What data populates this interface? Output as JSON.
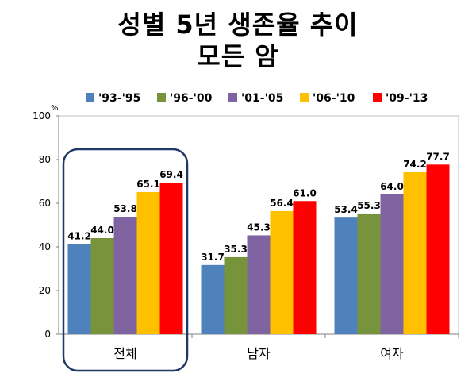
{
  "title_line1": "성별 5년 생존율 추이",
  "title_line2": "모든 암",
  "chart_data": {
    "type": "bar",
    "ylabel": "%",
    "ylim": [
      0,
      100
    ],
    "yticks": [
      0,
      20,
      40,
      60,
      80,
      100
    ],
    "categories": [
      "전체",
      "남자",
      "여자"
    ],
    "legend_position": "top",
    "grid": false,
    "highlighted_category": "전체",
    "series": [
      {
        "name": "'93-'95",
        "color": "#4f81bd",
        "values": [
          41.2,
          31.7,
          53.4
        ],
        "labels": [
          "41.2",
          "31.7",
          "53.4"
        ]
      },
      {
        "name": "'96-'00",
        "color": "#77933c",
        "values": [
          44.0,
          35.3,
          55.3
        ],
        "labels": [
          "44.0",
          "35.3",
          "55.3"
        ]
      },
      {
        "name": "'01-'05",
        "color": "#8064a2",
        "values": [
          53.8,
          45.3,
          64.0
        ],
        "labels": [
          "53.8",
          "45.3",
          "64.0"
        ]
      },
      {
        "name": "'06-'10",
        "color": "#ffc000",
        "values": [
          65.1,
          56.4,
          74.2
        ],
        "labels": [
          "65.1",
          "56.4",
          "74.2"
        ]
      },
      {
        "name": "'09-'13",
        "color": "#ff0000",
        "values": [
          69.4,
          61.0,
          77.7
        ],
        "labels": [
          "69.4",
          "61.0",
          "77.7"
        ]
      }
    ]
  }
}
